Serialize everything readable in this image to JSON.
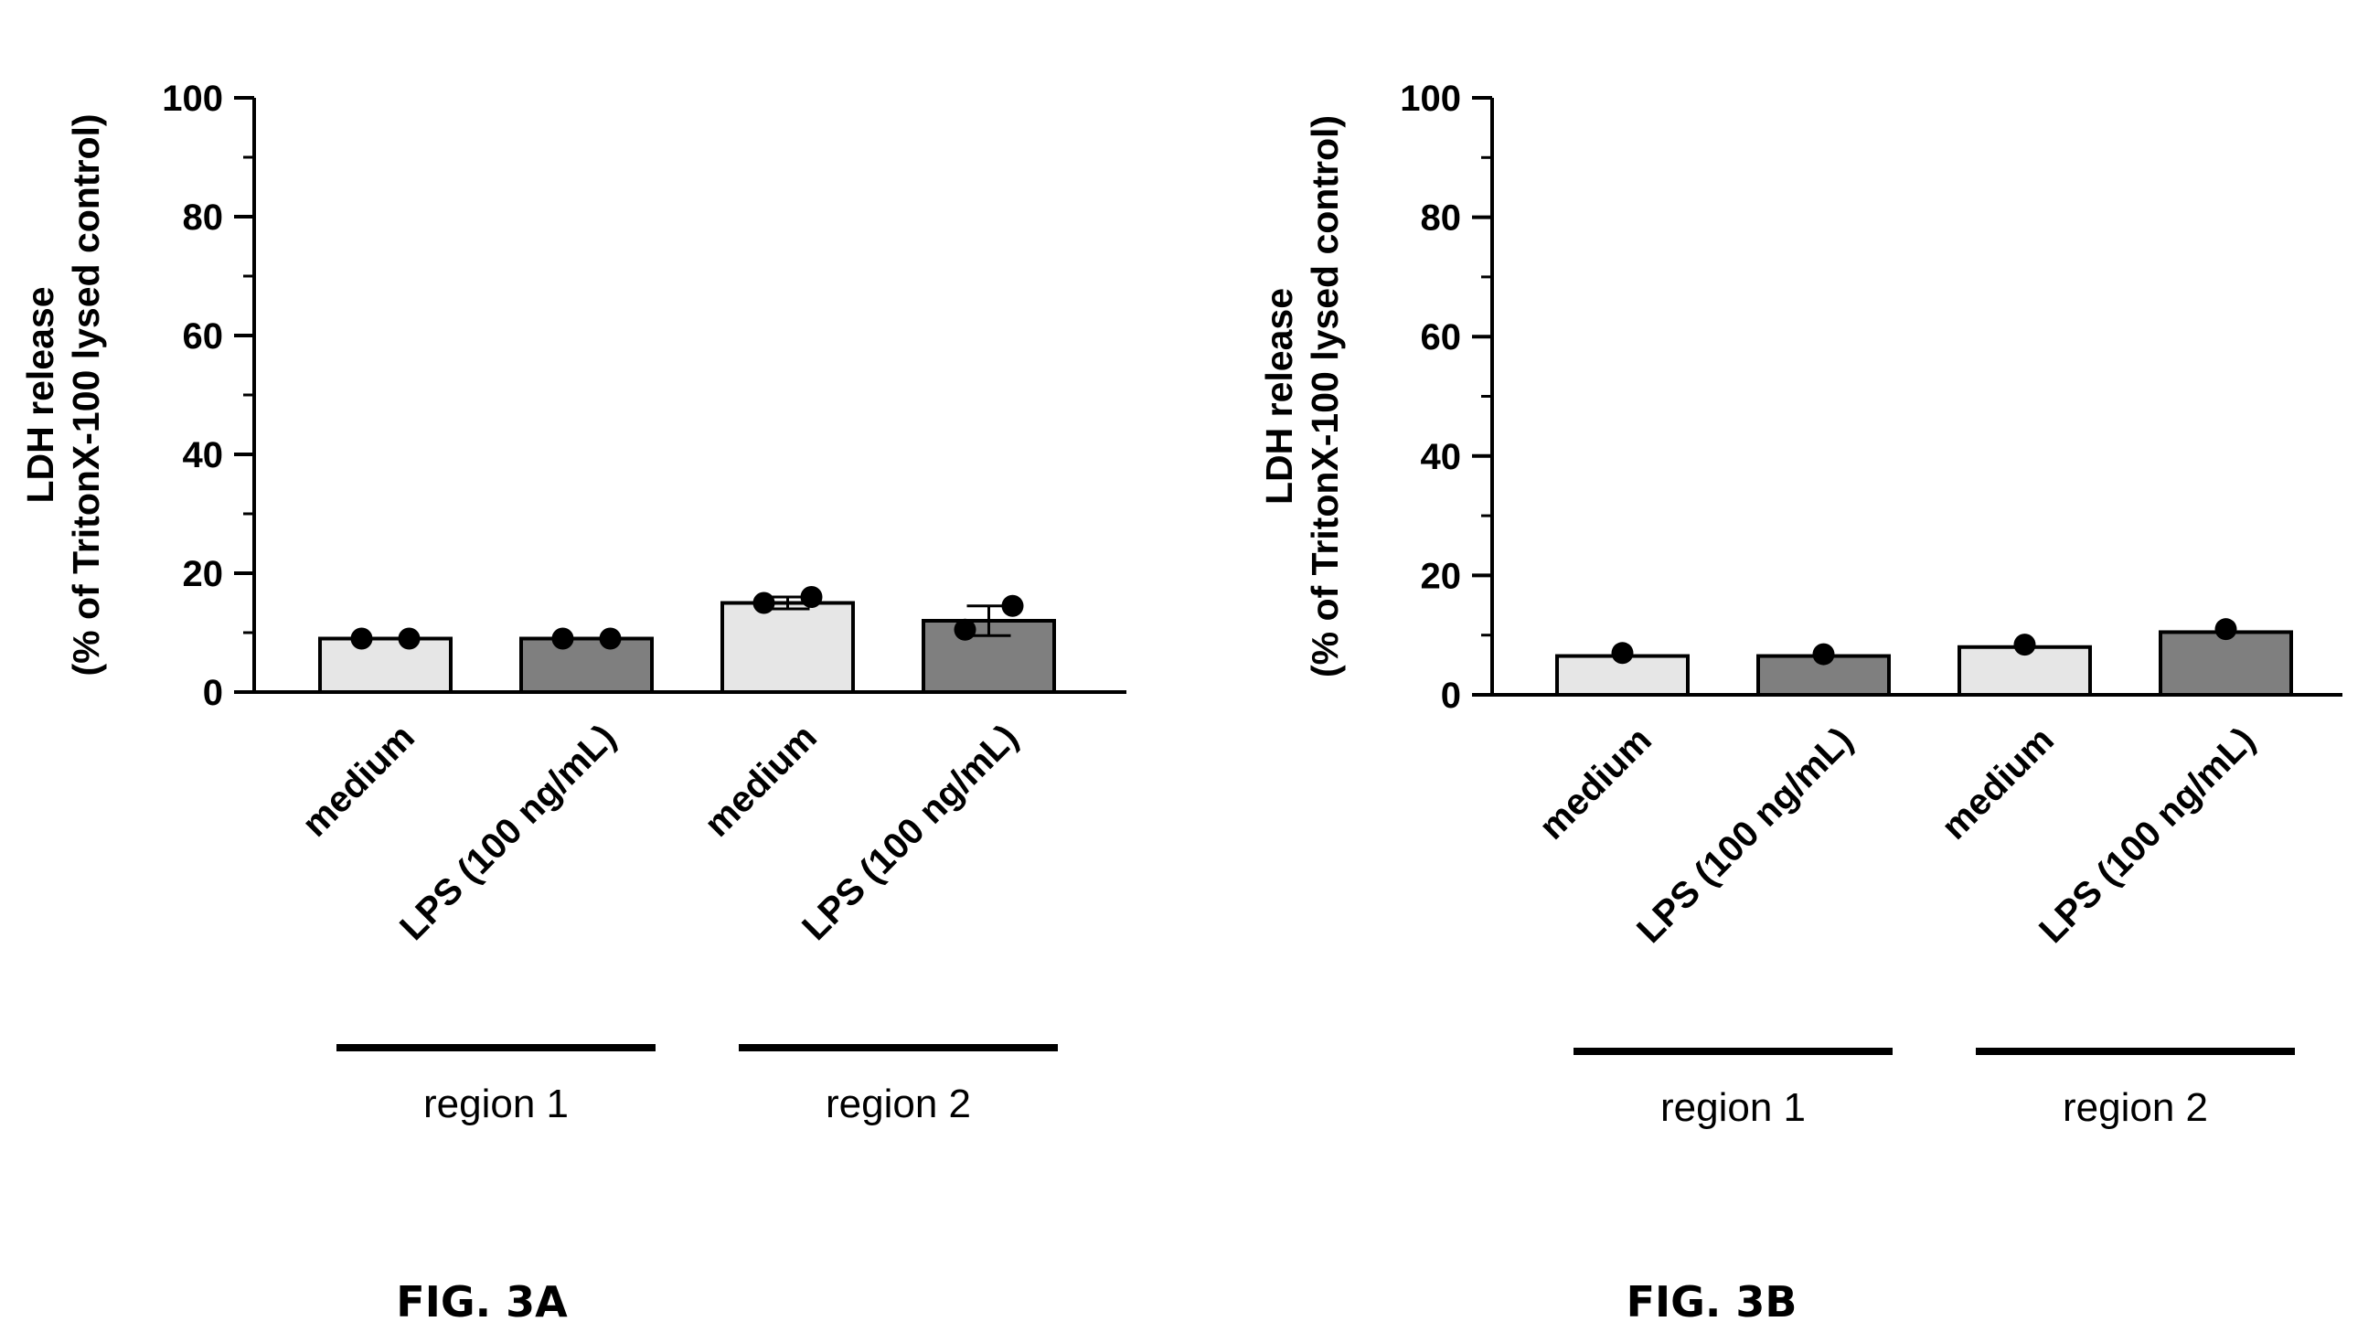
{
  "chart_data": [
    {
      "type": "bar",
      "figure_label": "FIG. 3A",
      "ylabel_line1": "LDH release",
      "ylabel_line2": "(% of TritonX-100 lysed control)",
      "ylim": [
        0,
        100
      ],
      "yticks": [
        "0",
        "20",
        "40",
        "60",
        "80",
        "100"
      ],
      "categories": [
        "medium",
        "LPS (100 ng/mL)",
        "medium",
        "LPS (100 ng/mL)"
      ],
      "groups": [
        {
          "label": "region 1",
          "categories": [
            0,
            1
          ]
        },
        {
          "label": "region 2",
          "categories": [
            2,
            3
          ]
        }
      ],
      "values": [
        9,
        9,
        15,
        12
      ],
      "errors": [
        0,
        0,
        1,
        2.5
      ],
      "points": [
        [
          9,
          9
        ],
        [
          9,
          9
        ],
        [
          15,
          16
        ],
        [
          10.5,
          14.5
        ]
      ],
      "bar_colors": [
        "#e6e6e6",
        "#7f7f7f",
        "#e6e6e6",
        "#7f7f7f"
      ],
      "grid": false
    },
    {
      "type": "bar",
      "figure_label": "FIG. 3B",
      "ylabel_line1": "LDH release",
      "ylabel_line2": "(% of TritonX-100 lysed control)",
      "ylim": [
        0,
        100
      ],
      "yticks": [
        "0",
        "20",
        "40",
        "60",
        "80",
        "100"
      ],
      "categories": [
        "medium",
        "LPS (100 ng/mL)",
        "medium",
        "LPS (100 ng/mL)"
      ],
      "groups": [
        {
          "label": "region 1",
          "categories": [
            0,
            1
          ]
        },
        {
          "label": "region 2",
          "categories": [
            2,
            3
          ]
        }
      ],
      "values": [
        6.5,
        6.5,
        8,
        10.5
      ],
      "errors": [
        0,
        0,
        0,
        0
      ],
      "points": [
        [
          7
        ],
        [
          6.8
        ],
        [
          8.4
        ],
        [
          11
        ]
      ],
      "bar_colors": [
        "#e6e6e6",
        "#7f7f7f",
        "#e6e6e6",
        "#7f7f7f"
      ],
      "grid": false
    }
  ]
}
